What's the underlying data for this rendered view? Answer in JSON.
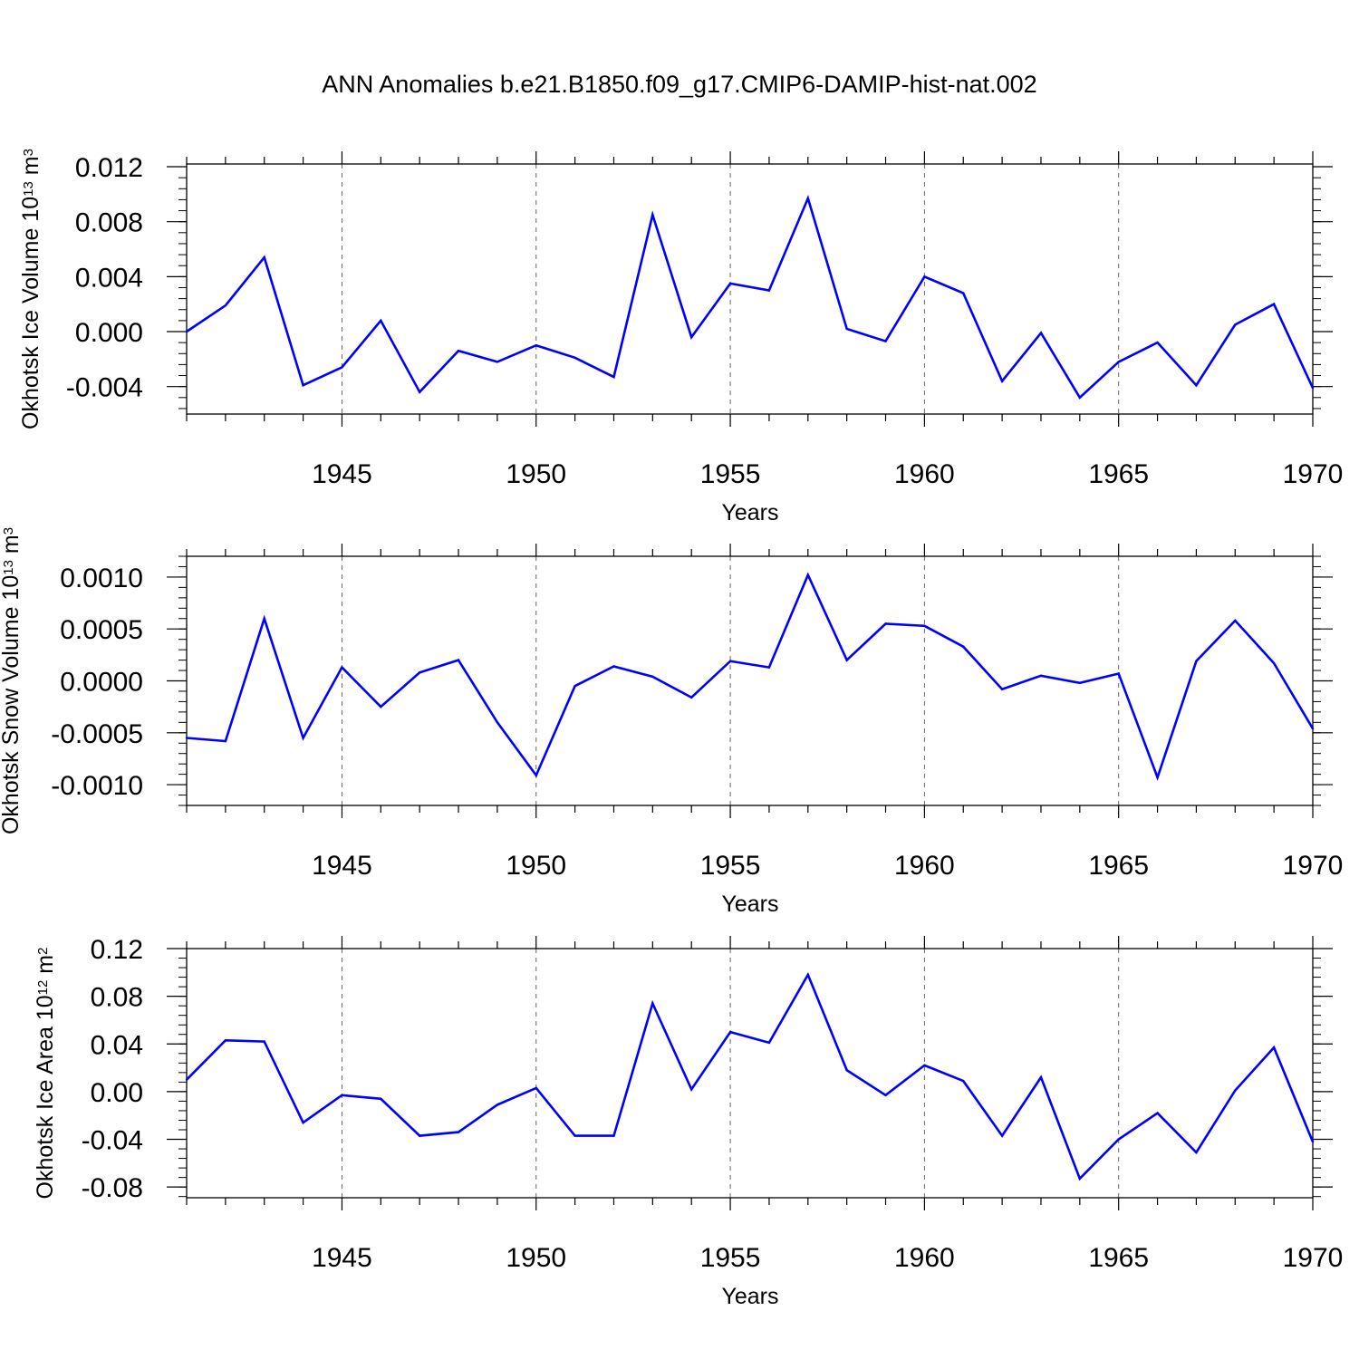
{
  "title": "ANN Anomalies b.e21.B1850.f09_g17.CMIP6-DAMIP-hist-nat.002",
  "chart_data": [
    {
      "type": "line",
      "xlabel": "Years",
      "ylabel": {
        "text": "Okhotsk Ice Volume 10",
        "sup1": "13",
        "mid": " m",
        "sup2": "3"
      },
      "xlim": [
        1941,
        1970
      ],
      "ylim": [
        -0.006,
        0.0122
      ],
      "xticks": [
        1945,
        1950,
        1955,
        1960,
        1965,
        1970
      ],
      "yticks": [
        -0.004,
        0.0,
        0.004,
        0.008,
        0.012
      ],
      "ytick_labels": [
        "-0.004",
        "0.000",
        "0.004",
        "0.008",
        "0.012"
      ],
      "grid": "vertical-dashed",
      "line_color": "#0000ff",
      "x": [
        1941,
        1942,
        1943,
        1944,
        1945,
        1946,
        1947,
        1948,
        1949,
        1950,
        1951,
        1952,
        1953,
        1954,
        1955,
        1956,
        1957,
        1958,
        1959,
        1960,
        1961,
        1962,
        1963,
        1964,
        1965,
        1966,
        1967,
        1968,
        1969,
        1970
      ],
      "values": [
        0.0,
        0.0019,
        0.0054,
        -0.0039,
        -0.0026,
        0.0008,
        -0.0044,
        -0.0014,
        -0.0022,
        -0.001,
        -0.0019,
        -0.0033,
        0.0085,
        -0.0004,
        0.0035,
        0.003,
        0.0097,
        0.0002,
        -0.0007,
        0.004,
        0.0028,
        -0.0036,
        -0.0001,
        -0.0048,
        -0.0022,
        -0.0008,
        -0.0039,
        0.0005,
        0.002,
        -0.0041
      ]
    },
    {
      "type": "line",
      "xlabel": "Years",
      "ylabel": {
        "text": "Okhotsk Snow Volume 10",
        "sup1": "13",
        "mid": " m",
        "sup2": "3"
      },
      "xlim": [
        1941,
        1970
      ],
      "ylim": [
        -0.0012,
        0.0012
      ],
      "xticks": [
        1945,
        1950,
        1955,
        1960,
        1965,
        1970
      ],
      "yticks": [
        -0.001,
        -0.0005,
        0.0,
        0.0005,
        0.001
      ],
      "ytick_labels": [
        "-0.0010",
        "-0.0005",
        "0.0000",
        "0.0005",
        "0.0010"
      ],
      "grid": "vertical-dashed",
      "line_color": "#0000ff",
      "x": [
        1941,
        1942,
        1943,
        1944,
        1945,
        1946,
        1947,
        1948,
        1949,
        1950,
        1951,
        1952,
        1953,
        1954,
        1955,
        1956,
        1957,
        1958,
        1959,
        1960,
        1961,
        1962,
        1963,
        1964,
        1965,
        1966,
        1967,
        1968,
        1969,
        1970
      ],
      "values": [
        -0.00055,
        -0.00058,
        0.0006,
        -0.00055,
        0.00013,
        -0.00025,
        8e-05,
        0.0002,
        -0.0004,
        -0.00091,
        -5e-05,
        0.00014,
        4e-05,
        -0.00016,
        0.00019,
        0.00013,
        0.00102,
        0.0002,
        0.00055,
        0.00053,
        0.00033,
        -8e-05,
        5e-05,
        -2e-05,
        7e-05,
        -0.00093,
        0.00019,
        0.00058,
        0.00017,
        -0.00046
      ]
    },
    {
      "type": "line",
      "xlabel": "Years",
      "ylabel": {
        "text": "Okhotsk Ice Area 10",
        "sup1": "12",
        "mid": " m",
        "sup2": "2"
      },
      "xlim": [
        1941,
        1970
      ],
      "ylim": [
        -0.089,
        0.12
      ],
      "xticks": [
        1945,
        1950,
        1955,
        1960,
        1965,
        1970
      ],
      "yticks": [
        -0.08,
        -0.04,
        0.0,
        0.04,
        0.08,
        0.12
      ],
      "ytick_labels": [
        "-0.08",
        "-0.04",
        "0.00",
        "0.04",
        "0.08",
        "0.12"
      ],
      "grid": "vertical-dashed",
      "line_color": "#0000ff",
      "x": [
        1941,
        1942,
        1943,
        1944,
        1945,
        1946,
        1947,
        1948,
        1949,
        1950,
        1951,
        1952,
        1953,
        1954,
        1955,
        1956,
        1957,
        1958,
        1959,
        1960,
        1961,
        1962,
        1963,
        1964,
        1965,
        1966,
        1967,
        1968,
        1969,
        1970
      ],
      "values": [
        0.01,
        0.043,
        0.042,
        -0.026,
        -0.003,
        -0.006,
        -0.037,
        -0.034,
        -0.011,
        0.003,
        -0.037,
        -0.037,
        0.074,
        0.002,
        0.05,
        0.041,
        0.098,
        0.018,
        -0.003,
        0.022,
        0.009,
        -0.037,
        0.012,
        -0.073,
        -0.04,
        -0.018,
        -0.051,
        0.001,
        0.037,
        -0.042
      ]
    }
  ]
}
